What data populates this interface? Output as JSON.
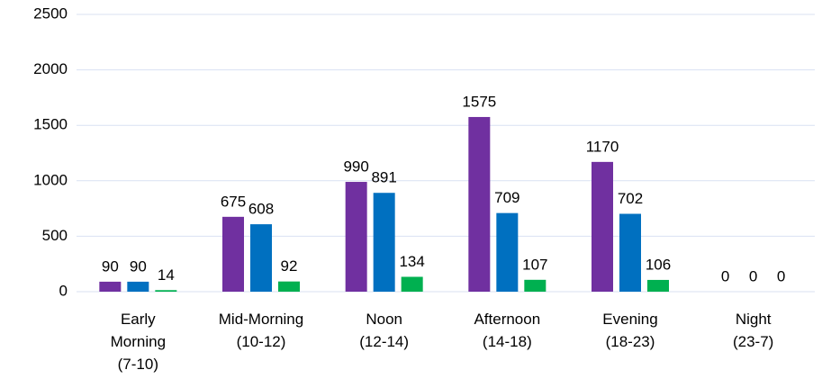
{
  "chart_data": {
    "type": "bar",
    "categories": [
      [
        "Early",
        "Morning",
        "(7-10)"
      ],
      [
        "Mid-Morning",
        "(10-12)"
      ],
      [
        "Noon",
        "(12-14)"
      ],
      [
        "Afternoon",
        "(14-18)"
      ],
      [
        "Evening",
        "(18-23)"
      ],
      [
        "Night",
        "(23-7)"
      ]
    ],
    "series": [
      {
        "color": "#7030a0",
        "values": [
          90,
          675,
          990,
          1575,
          1170,
          0
        ]
      },
      {
        "color": "#0070c0",
        "values": [
          90,
          608,
          891,
          709,
          702,
          0
        ]
      },
      {
        "color": "#00b050",
        "values": [
          14,
          92,
          134,
          107,
          106,
          0
        ]
      }
    ],
    "ylim": [
      0,
      2500
    ],
    "yticks": [
      0,
      500,
      1000,
      1500,
      2000,
      2500
    ],
    "grid": true
  }
}
